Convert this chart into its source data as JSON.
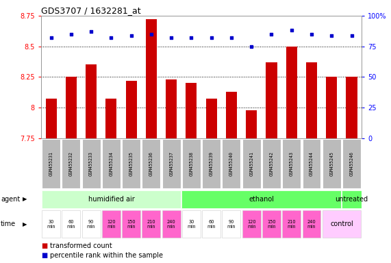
{
  "title": "GDS3707 / 1632281_at",
  "samples": [
    "GSM455231",
    "GSM455232",
    "GSM455233",
    "GSM455234",
    "GSM455235",
    "GSM455236",
    "GSM455237",
    "GSM455238",
    "GSM455239",
    "GSM455240",
    "GSM455241",
    "GSM455242",
    "GSM455243",
    "GSM455244",
    "GSM455245",
    "GSM455246"
  ],
  "bar_values": [
    8.07,
    8.25,
    8.35,
    8.07,
    8.22,
    8.72,
    8.23,
    8.2,
    8.07,
    8.13,
    7.98,
    8.37,
    8.5,
    8.37,
    8.25,
    8.25
  ],
  "percentile_values": [
    82,
    85,
    87,
    82,
    84,
    85,
    82,
    82,
    82,
    82,
    75,
    85,
    88,
    85,
    84,
    84
  ],
  "bar_color": "#cc0000",
  "percentile_color": "#0000cc",
  "ylim_left": [
    7.75,
    8.75
  ],
  "ylim_right": [
    0,
    100
  ],
  "yticks_left": [
    7.75,
    8.0,
    8.25,
    8.5,
    8.75
  ],
  "yticks_right": [
    0,
    25,
    50,
    75,
    100
  ],
  "ytick_labels_left": [
    "7.75",
    "8",
    "8.25",
    "8.5",
    "8.75"
  ],
  "ytick_labels_right": [
    "0",
    "25",
    "50",
    "75",
    "100%"
  ],
  "grid_values": [
    8.0,
    8.25,
    8.5
  ],
  "agent_groups": [
    {
      "label": "humidified air",
      "start": 0,
      "end": 7,
      "color": "#ccffcc"
    },
    {
      "label": "ethanol",
      "start": 7,
      "end": 15,
      "color": "#66ff66"
    },
    {
      "label": "untreated",
      "start": 15,
      "end": 16,
      "color": "#66ff66"
    }
  ],
  "time_labels": [
    "30\nmin",
    "60\nmin",
    "90\nmin",
    "120\nmin",
    "150\nmin",
    "210\nmin",
    "240\nmin",
    "30\nmin",
    "60\nmin",
    "90\nmin",
    "120\nmin",
    "150\nmin",
    "210\nmin",
    "240\nmin"
  ],
  "time_colors": [
    "white",
    "white",
    "white",
    "pink",
    "pink",
    "pink",
    "pink",
    "white",
    "white",
    "white",
    "pink",
    "pink",
    "pink",
    "pink"
  ],
  "time_bg_white": "#ffffff",
  "time_bg_pink": "#ff66cc",
  "control_label": "control",
  "control_bg": "#ffccff",
  "agent_label": "agent",
  "time_label": "time",
  "legend_bar_label": "transformed count",
  "legend_percentile_label": "percentile rank within the sample",
  "background_color": "#ffffff",
  "plot_bg": "#ffffff",
  "header_bg": "#bbbbbb",
  "n_samples": 16
}
